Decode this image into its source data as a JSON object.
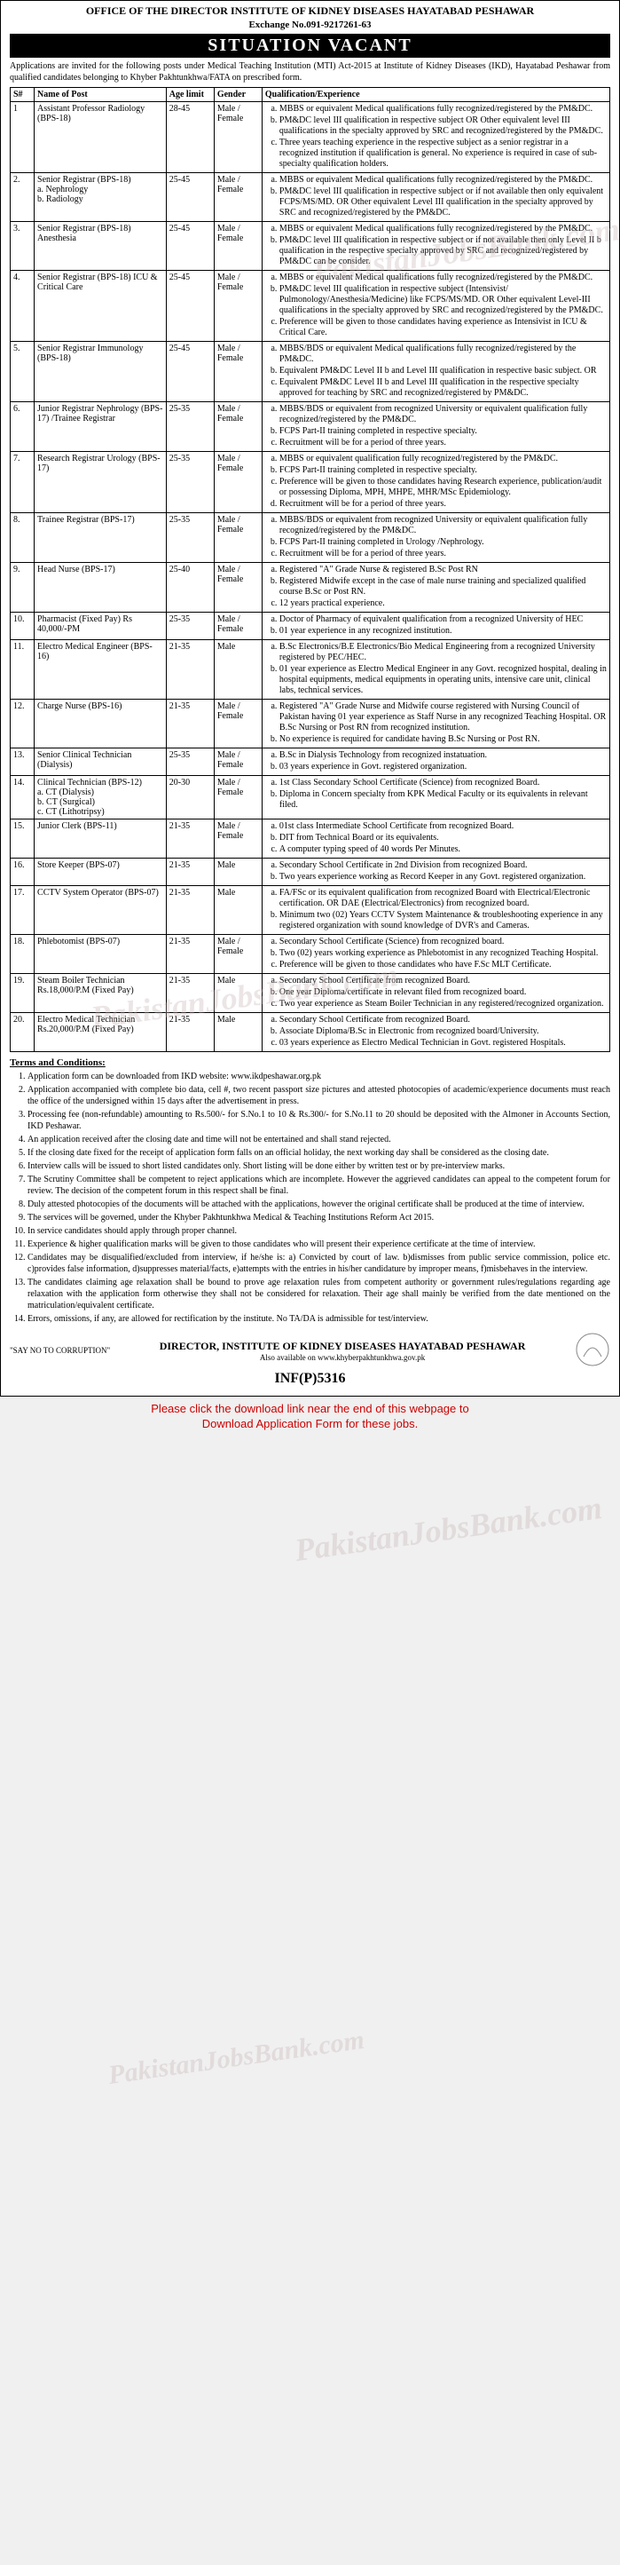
{
  "header": {
    "org": "OFFICE OF THE DIRECTOR INSTITUTE OF KIDNEY DISEASES HAYATABAD PESHAWAR",
    "exchange": "Exchange No.091-9217261-63",
    "title": "SITUATION VACANT",
    "intro": "Applications are invited for the following posts under Medical Teaching Institution (MTI) Act-2015 at Institute of Kidney Diseases (IKD), Hayatabad Peshawar from qualified candidates belonging to Khyber Pakhtunkhwa/FATA on prescribed form."
  },
  "columns": [
    "S#",
    "Name of Post",
    "Age limit",
    "Gender",
    "Qualification/Experience"
  ],
  "posts": [
    {
      "sn": "1",
      "name": "Assistant Professor Radiology (BPS-18)",
      "age": "28-45",
      "gender": "Male / Female",
      "qual": [
        "MBBS or equivalent Medical qualifications fully recognized/registered by the PM&DC.",
        "PM&DC level III qualification in respective subject OR Other equivalent level III qualifications in the specialty approved by SRC and recognized/registered by the PM&DC.",
        "Three years teaching experience in the respective subject as a senior registrar in a recognized institution if qualification is general. No experience is required in case of sub-specialty qualification holders."
      ]
    },
    {
      "sn": "2.",
      "name": "Senior Registrar (BPS-18)\na. Nephrology\nb. Radiology",
      "age": "25-45",
      "gender": "Male / Female",
      "qual": [
        "MBBS or equivalent Medical qualifications fully recognized/registered by the PM&DC.",
        "PM&DC level III qualification in respective subject or if not available then only equivalent FCPS/MS/MD. OR Other equivalent Level III qualification in the specialty approved by SRC and recognized/registered by the PM&DC."
      ]
    },
    {
      "sn": "3.",
      "name": "Senior Registrar (BPS-18) Anesthesia",
      "age": "25-45",
      "gender": "Male / Female",
      "qual": [
        "MBBS or equivalent Medical qualifications fully recognized/registered by the PM&DC.",
        "PM&DC level III qualification in respective subject or if not available then only Level II b qualification in the respective specialty approved by SRC and recognized/registered by PM&DC can be consider."
      ]
    },
    {
      "sn": "4.",
      "name": "Senior Registrar (BPS-18) ICU & Critical Care",
      "age": "25-45",
      "gender": "Male / Female",
      "qual": [
        "MBBS or equivalent Medical qualifications fully recognized/registered by the PM&DC.",
        "PM&DC level III qualification in respective subject (Intensivist/ Pulmonology/Anesthesia/Medicine) like FCPS/MS/MD. OR Other equivalent Level-III qualifications in the specialty approved by SRC and recognized/registered by the PM&DC.",
        "Preference will be given to those candidates having experience as Intensivist in ICU & Critical Care."
      ]
    },
    {
      "sn": "5.",
      "name": "Senior Registrar Immunology (BPS-18)",
      "age": "25-45",
      "gender": "Male / Female",
      "qual": [
        "MBBS/BDS or equivalent Medical qualifications fully recognized/registered by the PM&DC.",
        "Equivalent PM&DC Level II b and Level III qualification in respective basic subject. OR",
        "Equivalent PM&DC Level II b and Level III qualification in the respective specialty approved for teaching by SRC and recognized/registered by PM&DC."
      ]
    },
    {
      "sn": "6.",
      "name": "Junior Registrar Nephrology (BPS-17) /Trainee Registrar",
      "age": "25-35",
      "gender": "Male / Female",
      "qual": [
        "MBBS/BDS or equivalent from recognized University or equivalent qualification fully recognized/registered by the PM&DC.",
        "FCPS Part-II training completed in respective specialty.",
        "Recruitment will be for a period of three years."
      ]
    },
    {
      "sn": "7.",
      "name": "Research Registrar Urology (BPS-17)",
      "age": "25-35",
      "gender": "Male / Female",
      "qual": [
        "MBBS or equivalent qualification fully recognized/registered by the PM&DC.",
        "FCPS Part-II training completed in respective specialty.",
        "Preference will be given to those candidates having Research experience, publication/audit or possessing Diploma, MPH, MHPE, MHR/MSc Epidemiology.",
        "Recruitment will be for a period of three years."
      ]
    },
    {
      "sn": "8.",
      "name": "Trainee Registrar (BPS-17)",
      "age": "25-35",
      "gender": "Male / Female",
      "qual": [
        "MBBS/BDS or equivalent from recognized University or equivalent qualification fully recognized/registered by the PM&DC.",
        "FCPS Part-II training completed in Urology /Nephrology.",
        "Recruitment will be for a period of three years."
      ]
    },
    {
      "sn": "9.",
      "name": "Head Nurse (BPS-17)",
      "age": "25-40",
      "gender": "Male / Female",
      "qual": [
        "Registered \"A\" Grade Nurse & registered B.Sc Post RN",
        "Registered Midwife except in the case of male nurse training and specialized qualified course B.Sc or Post RN.",
        "12 years practical experience."
      ]
    },
    {
      "sn": "10.",
      "name": "Pharmacist (Fixed Pay) Rs 40,000/-PM",
      "age": "25-35",
      "gender": "Male / Female",
      "qual": [
        "Doctor of Pharmacy of equivalent qualification from a recognized University of HEC",
        "01 year experience in any recognized institution."
      ]
    },
    {
      "sn": "11.",
      "name": "Electro Medical Engineer (BPS-16)",
      "age": "21-35",
      "gender": "Male",
      "qual": [
        "B.Sc Electronics/B.E Electronics/Bio Medical Engineering from a recognized University registered by PEC/HEC.",
        "01 year experience as Electro Medical Engineer in any Govt. recognized hospital, dealing in hospital equipments, medical equipments in operating units, intensive care unit, clinical labs, technical services."
      ]
    },
    {
      "sn": "12.",
      "name": "Charge Nurse (BPS-16)",
      "age": "21-35",
      "gender": "Male / Female",
      "qual": [
        "Registered \"A\" Grade Nurse and Midwife course registered with Nursing Council of Pakistan having 01 year experience as Staff Nurse in any recognized Teaching Hospital. OR B.Sc Nursing or Post RN from recognized institution.",
        "No experience is required for candidate having B.Sc Nursing or Post RN."
      ]
    },
    {
      "sn": "13.",
      "name": "Senior Clinical Technician (Dialysis)",
      "age": "25-35",
      "gender": "Male / Female",
      "qual": [
        "B.Sc in Dialysis Technology from recognized instatuation.",
        "03 years experience in Govt. registered organization."
      ]
    },
    {
      "sn": "14.",
      "name": "Clinical Technician (BPS-12)\na. CT (Dialysis)\nb. CT (Surgical)\nc. CT (Lithotripsy)",
      "age": "20-30",
      "gender": "Male / Female",
      "qual": [
        "1st Class Secondary School Certificate (Science) from recognized Board.",
        "Diploma in Concern specialty from KPK Medical Faculty or its equivalents in relevant filed."
      ]
    },
    {
      "sn": "15.",
      "name": "Junior Clerk (BPS-11)",
      "age": "21-35",
      "gender": "Male / Female",
      "qual": [
        "01st class Intermediate School Certificate from recognized Board.",
        "DIT from Technical Board or its equivalents.",
        "A computer typing speed of 40 words Per Minutes."
      ]
    },
    {
      "sn": "16.",
      "name": "Store Keeper (BPS-07)",
      "age": "21-35",
      "gender": "Male",
      "qual": [
        "Secondary School Certificate in 2nd Division from recognized Board.",
        "Two years experience working as Record Keeper in any Govt. registered organization."
      ]
    },
    {
      "sn": "17.",
      "name": "CCTV System Operator (BPS-07)",
      "age": "21-35",
      "gender": "Male",
      "qual": [
        "FA/FSc or its equivalent qualification from recognized Board with Electrical/Electronic certification. OR DAE (Electrical/Electronics) from recognized board.",
        "Minimum two (02) Years CCTV System Maintenance & troubleshooting experience in any registered organization with sound knowledge of DVR's and Cameras."
      ]
    },
    {
      "sn": "18.",
      "name": "Phlebotomist (BPS-07)",
      "age": "21-35",
      "gender": "Male / Female",
      "qual": [
        "Secondary School Certificate (Science) from recognized board.",
        "Two (02) years working experience as Phlebotomist in any recognized Teaching Hospital.",
        "Preference will be given to those candidates who have F.Sc MLT Certificate."
      ]
    },
    {
      "sn": "19.",
      "name": "Steam Boiler Technician Rs.18,000/P.M (Fixed Pay)",
      "age": "21-35",
      "gender": "Male",
      "qual": [
        "Secondary School Certificate from recognized Board.",
        "One year Diploma/certificate in relevant filed from recognized board.",
        "Two year experience as Steam Boiler Technician in any registered/recognized organization."
      ]
    },
    {
      "sn": "20.",
      "name": "Electro Medical Technician Rs.20,000/P.M (Fixed Pay)",
      "age": "21-35",
      "gender": "Male",
      "qual": [
        "Secondary School Certificate from recognized Board.",
        "Associate Diploma/B.Sc in Electronic from recognized board/University.",
        "03 years experience as Electro Medical Technician in Govt. registered Hospitals."
      ]
    }
  ],
  "terms_heading": "Terms and Conditions:",
  "terms": [
    "Application form can be downloaded from IKD website: www.ikdpeshawar.org.pk",
    "Application accompanied with complete bio data, cell #, two recent passport size pictures and attested photocopies of academic/experience documents must reach the office of the undersigned within 15 days after the advertisement in press.",
    "Processing fee (non-refundable) amounting to Rs.500/- for S.No.1 to 10 & Rs.300/- for S.No.11 to 20 should be deposited with the Almoner in Accounts Section, IKD Peshawar.",
    "An application received after the closing date and time will not be entertained and shall stand rejected.",
    "If the closing date fixed for the receipt of application form falls on an official holiday, the next working day shall be considered as the closing date.",
    "Interview calls will be issued to short listed candidates only. Short listing will be done either by written test or by pre-interview marks.",
    "The Scrutiny Committee shall be competent to reject applications which are incomplete. However the aggrieved candidates can appeal to the competent forum for review. The decision of the competent forum in this respect shall be final.",
    "Duly attested photocopies of the documents will be attached with the applications, however the original certificate shall be produced at the time of interview.",
    "The services will be governed, under the Khyber Pakhtunkhwa Medical & Teaching Institutions Reform Act 2015.",
    "In service candidates should apply through proper channel.",
    "Experience & higher qualification marks will be given to those candidates who will present their experience certificate at the time of interview.",
    "Candidates may be disqualified/excluded from interview, if he/she is: a) Convicted by court of law. b)dismisses from public service commission, police etc. c)provides false information, d)suppresses material/facts, e)attempts with the entries in his/her candidature by improper means, f)misbehaves in the interview.",
    "The candidates claiming age relaxation shall be bound to prove age relaxation rules from competent authority or government rules/regulations regarding age relaxation with the application form otherwise they shall not be considered for relaxation. Their age shall mainly be verified from the date mentioned on the matriculation/equivalent certificate.",
    "Errors, omissions, if any, are allowed for rectification by the institute. No TA/DA is admissible for test/interview."
  ],
  "footer": {
    "say_no": "\"SAY NO TO CORRUPTION\"",
    "director": "DIRECTOR, INSTITUTE OF KIDNEY DISEASES HAYATABAD PESHAWAR",
    "website": "Also available on www.khyberpakhtunkhwa.gov.pk",
    "inf": "INF(P)5316"
  },
  "click": {
    "line1": "Please click the download link near the end of this webpage to",
    "line2": "Download Application Form for these jobs."
  },
  "watermark": "PakistanJobsBank.com"
}
